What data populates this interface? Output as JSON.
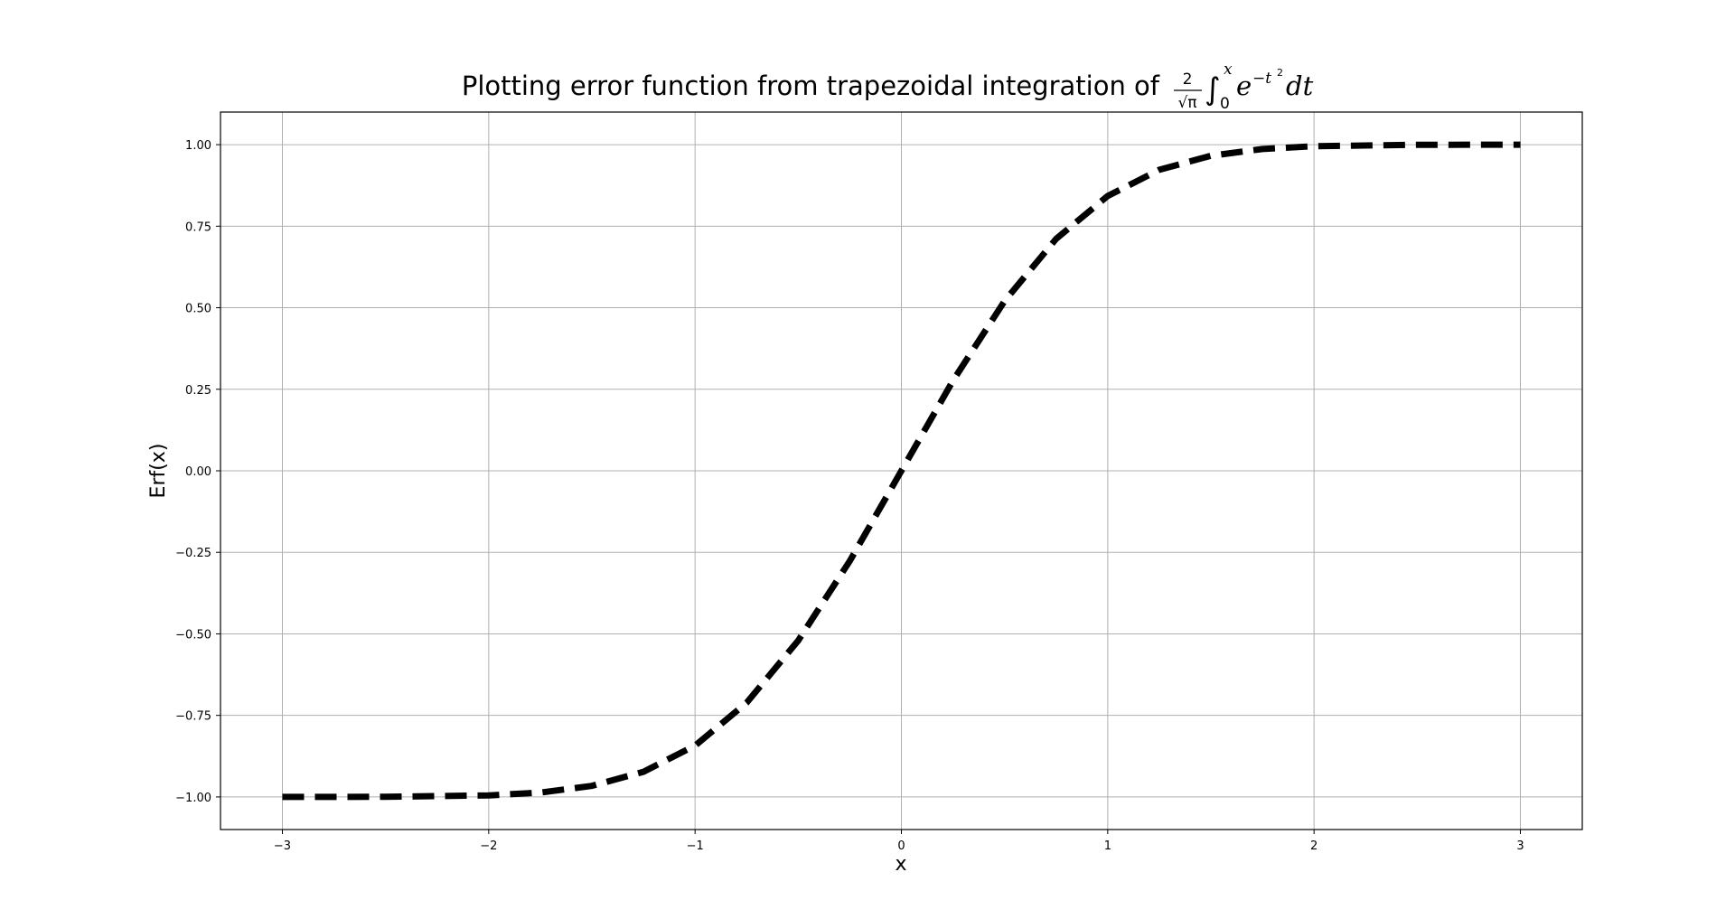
{
  "chart_data": {
    "type": "line",
    "title": "Plotting error function from trapezoidal integration of",
    "title_math": {
      "fraction_numerator": "2",
      "fraction_denominator": "√π",
      "integral": "∫",
      "upper_limit": "x",
      "lower_limit": "0",
      "base": "e",
      "exponent": "−t",
      "exponent_power": "2",
      "differential": "dt"
    },
    "xlabel": "x",
    "ylabel": "Erf(x)",
    "xlim": [
      -3.3,
      3.3
    ],
    "ylim": [
      -1.1,
      1.1
    ],
    "x_ticks": [
      -3,
      -2,
      -1,
      0,
      1,
      2,
      3
    ],
    "x_tick_labels": [
      "−3",
      "−2",
      "−1",
      "0",
      "1",
      "2",
      "3"
    ],
    "y_ticks": [
      1.0,
      0.75,
      0.5,
      0.25,
      0.0,
      -0.25,
      -0.5,
      -0.75,
      -1.0
    ],
    "y_tick_labels": [
      "1.00",
      "0.75",
      "0.50",
      "0.25",
      "0.00",
      "−0.25",
      "−0.50",
      "−0.75",
      "−1.00"
    ],
    "grid": true,
    "line_style": "dashed",
    "series": [
      {
        "color": "#000000",
        "x": [
          -3.0,
          -2.5,
          -2.0,
          -1.75,
          -1.5,
          -1.25,
          -1.0,
          -0.75,
          -0.5,
          -0.25,
          0.0,
          0.25,
          0.5,
          0.75,
          1.0,
          1.25,
          1.5,
          1.75,
          2.0,
          2.5,
          3.0
        ],
        "y": [
          -1.0,
          -0.9996,
          -0.9953,
          -0.9867,
          -0.9661,
          -0.9229,
          -0.8427,
          -0.7112,
          -0.5205,
          -0.2763,
          0.0,
          0.2763,
          0.5205,
          0.7112,
          0.8427,
          0.9229,
          0.9661,
          0.9867,
          0.9953,
          0.9996,
          1.0
        ]
      }
    ]
  }
}
